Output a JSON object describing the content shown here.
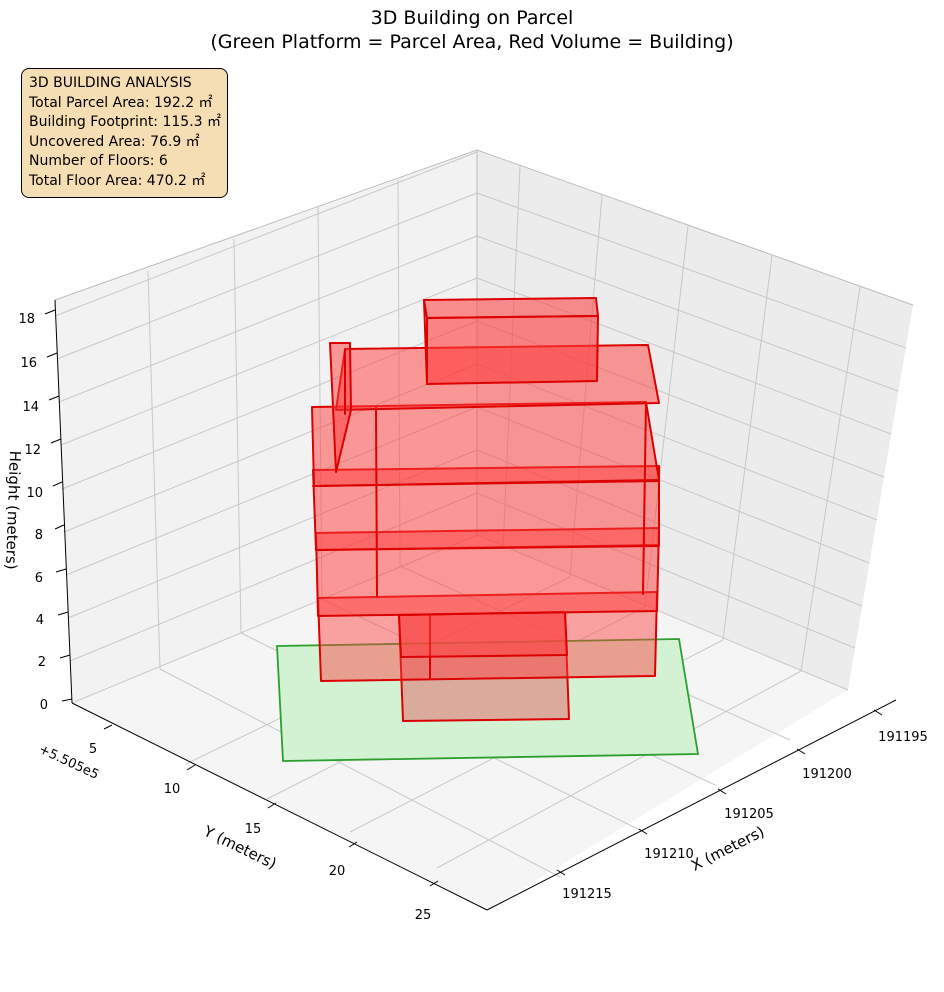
{
  "chart_data": {
    "type": "3d-box",
    "title_line1": "3D Building on Parcel",
    "title_line2": "(Green Platform = Parcel Area, Red Volume = Building)",
    "xlabel": "X (meters)",
    "ylabel": "Y (meters)",
    "zlabel": "Height (meters)",
    "y_offset_label": "+5.505e5",
    "x_ticks": [
      "191195",
      "191200",
      "191205",
      "191210",
      "191215"
    ],
    "y_ticks": [
      "5",
      "10",
      "15",
      "20",
      "25"
    ],
    "z_ticks": [
      "0",
      "2",
      "4",
      "6",
      "8",
      "10",
      "12",
      "14",
      "16",
      "18"
    ],
    "grid": true,
    "legend": "none",
    "colors": {
      "parcel_fill": "#d3f2d3",
      "parcel_edge": "#2ca02c",
      "building_fill": "#ff3b3b",
      "building_edge": "#dd0000"
    }
  },
  "info": {
    "heading": "3D BUILDING ANALYSIS",
    "parcel_area": "Total Parcel Area: 192.2 ㎡",
    "footprint": "Building Footprint: 115.3 ㎡",
    "uncovered": "Uncovered Area: 76.9 ㎡",
    "floors": "Number of Floors: 6",
    "floor_area": "Total Floor Area: 470.2 ㎡"
  }
}
